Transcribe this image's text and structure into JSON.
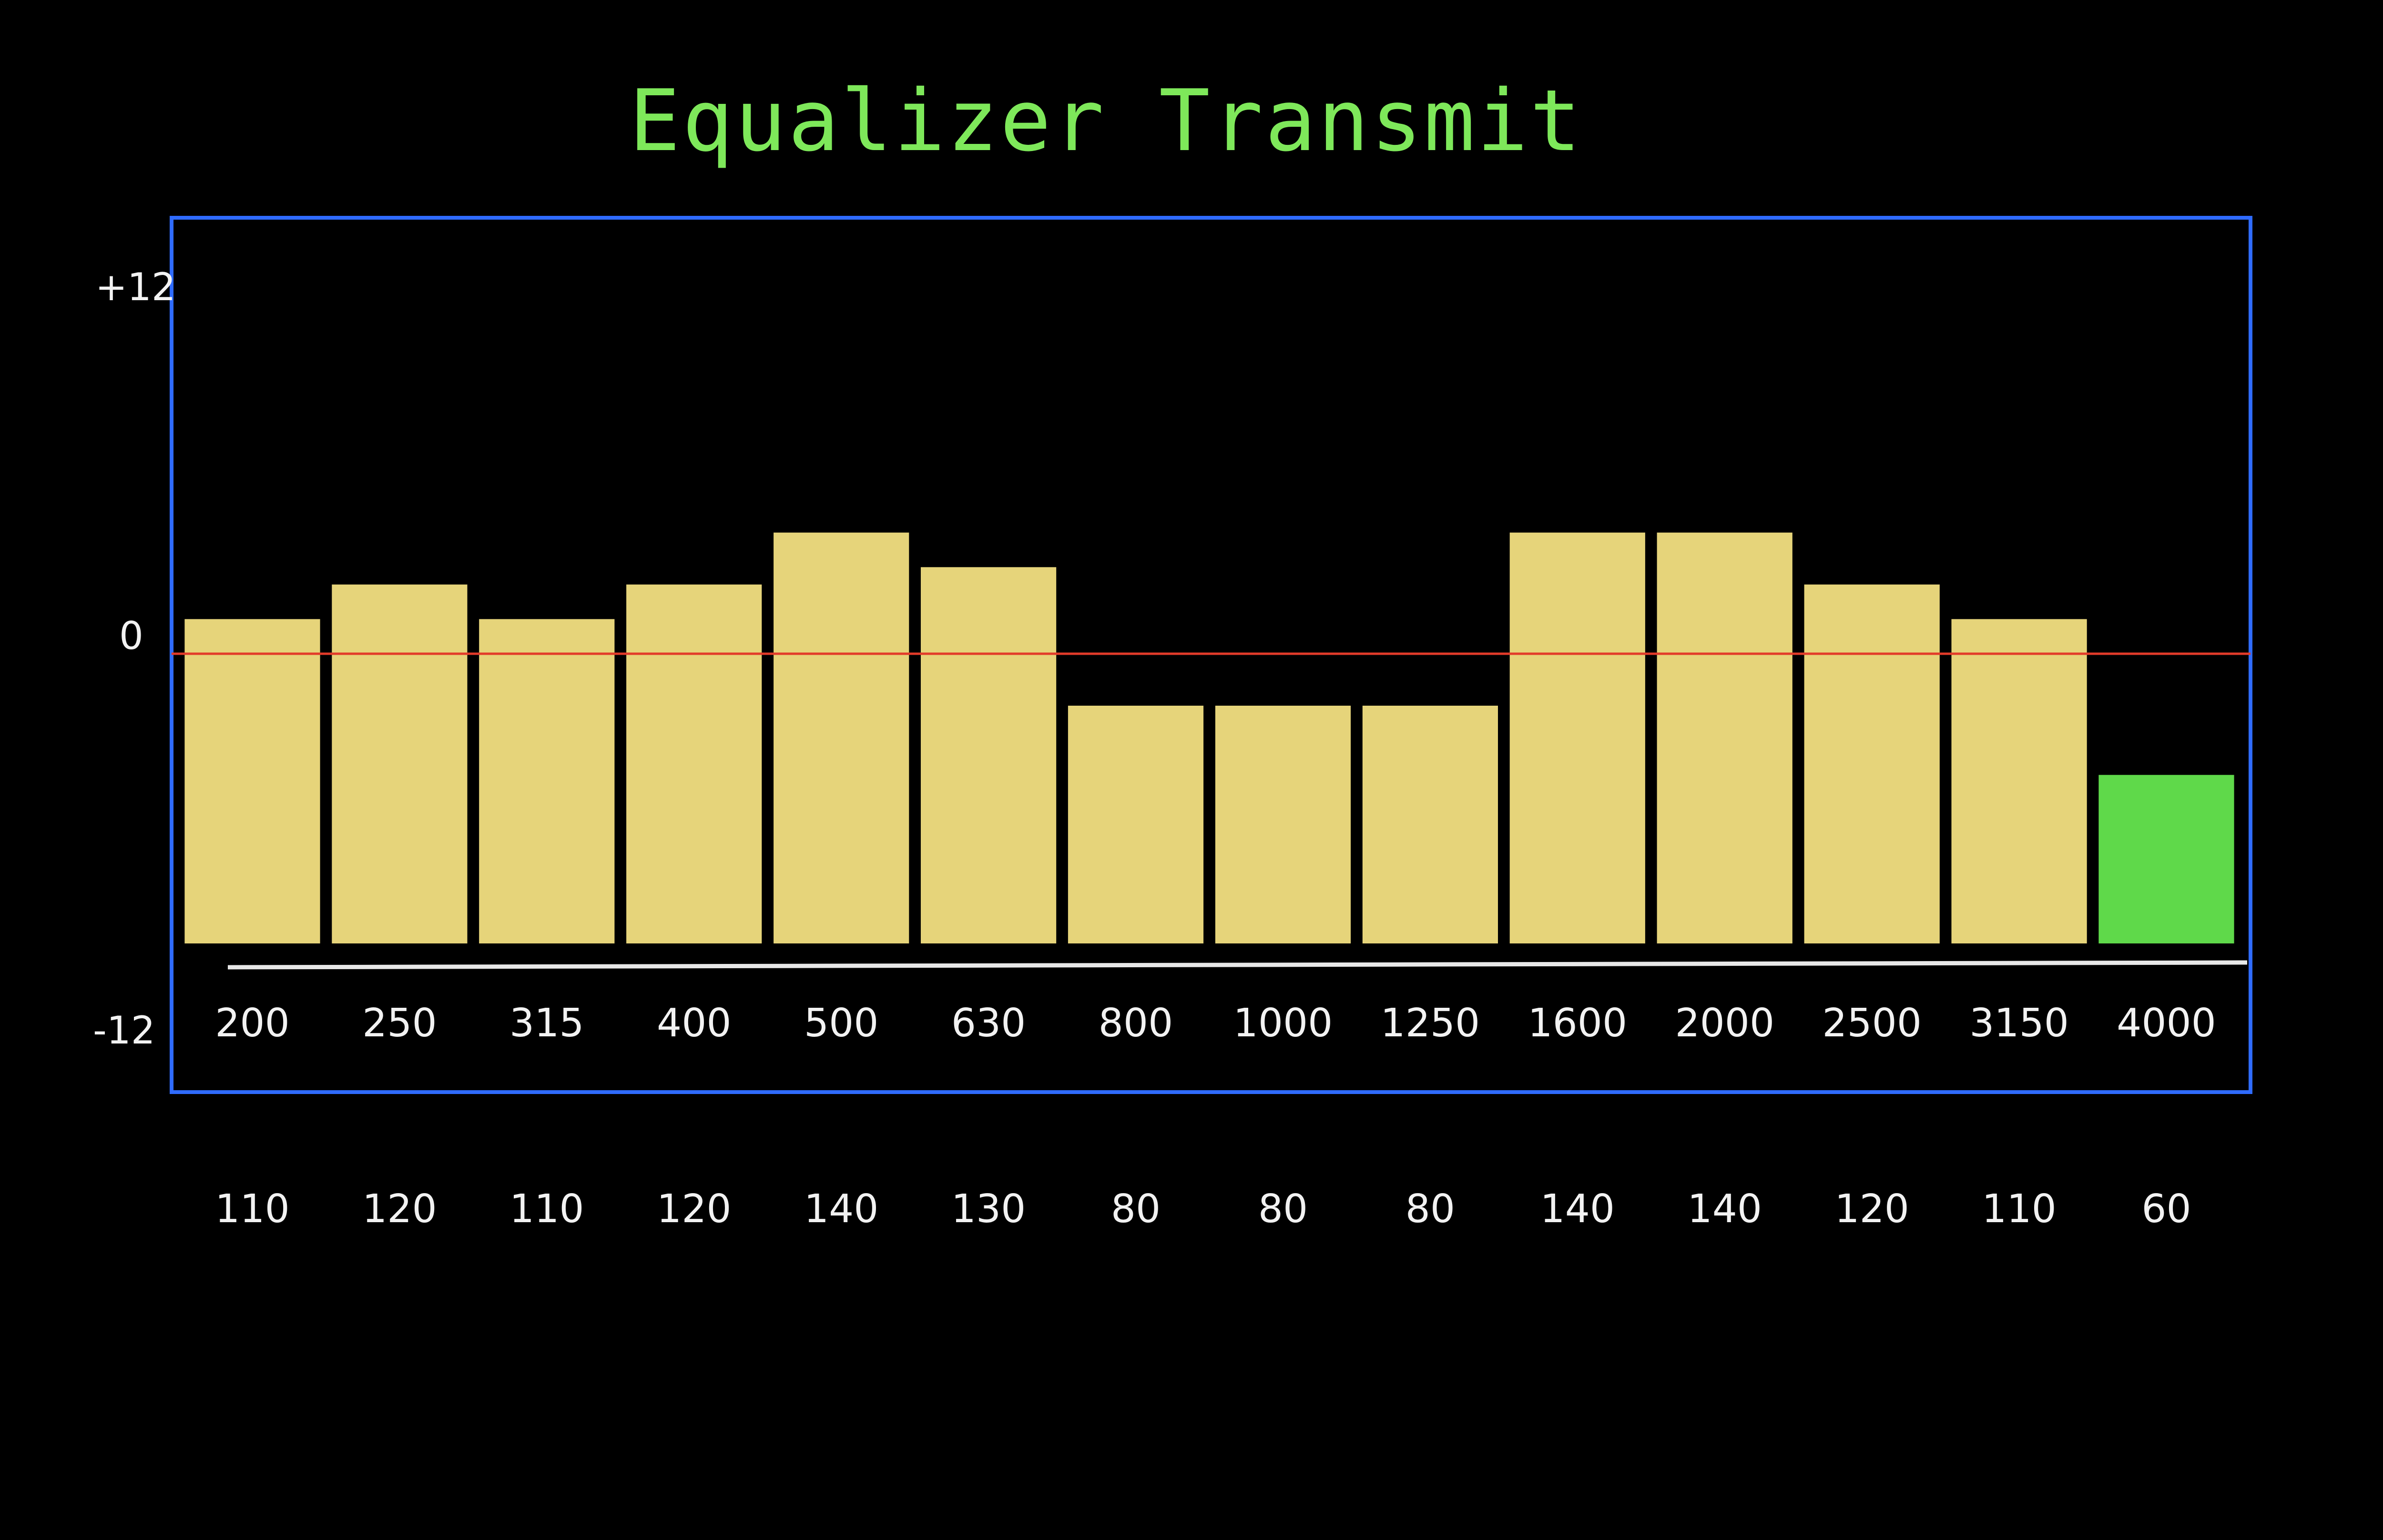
{
  "screen": {
    "title": "Equalizer Transmit",
    "colors": {
      "background": "#000000",
      "title": "#7ee85a",
      "frame": "#2f6bff",
      "bar": "#e6d47a",
      "selected_bar": "#5fd94a",
      "zero_line": "#e23b2a",
      "baseline": "#e8e8e8",
      "text": "#f2f2f2"
    }
  },
  "chart_data": {
    "type": "bar",
    "title": "Equalizer Transmit",
    "xlabel": "",
    "ylabel": "",
    "ylim": [
      -12,
      12
    ],
    "y_ticks": [
      "+12",
      "0",
      "-12"
    ],
    "categories": [
      "200",
      "250",
      "315",
      "400",
      "500",
      "630",
      "800",
      "1000",
      "1250",
      "1600",
      "2000",
      "2500",
      "3150",
      "4000"
    ],
    "values": [
      1,
      2,
      1,
      2,
      3.5,
      2.5,
      -1.5,
      -1.5,
      -1.5,
      3.5,
      3.5,
      2,
      1,
      -3.5
    ],
    "band_values": [
      "110",
      "120",
      "110",
      "120",
      "140",
      "130",
      "80",
      "80",
      "80",
      "140",
      "140",
      "120",
      "110",
      "60"
    ],
    "selected_index": 13,
    "zero_line": true,
    "grid": false
  }
}
